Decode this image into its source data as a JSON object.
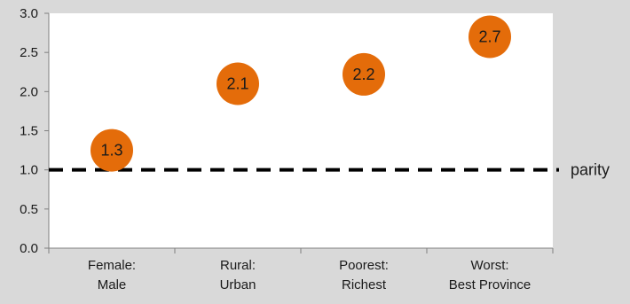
{
  "chart_data": {
    "type": "scatter",
    "categories": [
      "Female: Male",
      "Rural: Urban",
      "Poorest: Richest",
      "Worst: Best Province"
    ],
    "category_lines": [
      [
        "Female:",
        "Male"
      ],
      [
        "Rural:",
        "Urban"
      ],
      [
        "Poorest:",
        "Richest"
      ],
      [
        "Worst:",
        "Best Province"
      ]
    ],
    "values": [
      1.25,
      2.1,
      2.22,
      2.7
    ],
    "data_labels": [
      "1.3",
      "2.1",
      "2.2",
      "2.7"
    ],
    "ylim": [
      0,
      3
    ],
    "yticks": [
      "0.0",
      "0.5",
      "1.0",
      "1.5",
      "2.0",
      "2.5",
      "3.0"
    ],
    "reference_line": {
      "value": 1.0,
      "label": "parity",
      "style": "dashed"
    },
    "marker_color": "#e46c0a",
    "plot_background": "#ffffff",
    "page_background": "#d9d9d9",
    "grid": false
  }
}
